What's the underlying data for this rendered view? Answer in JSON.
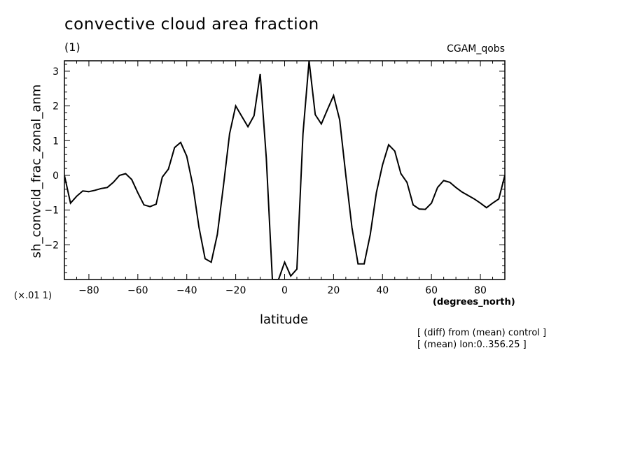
{
  "header": {
    "title": "convective cloud area fraction",
    "subtitle": "(1)",
    "run_label": "CGAM_qobs"
  },
  "axes": {
    "ylabel": "sh_convcld_frac_zonal_anm",
    "xlabel": "latitude",
    "x_units": "(degrees_north)",
    "y_scale_note": "(×.01 1)"
  },
  "notes": [
    "[ (diff) from (mean) control ]",
    "[ (mean) lon:0..356.25 ]"
  ],
  "chart_data": {
    "type": "line",
    "title": "convective cloud area fraction",
    "xlabel": "latitude",
    "ylabel": "sh_convcld_frac_zonal_anm",
    "xlim": [
      -90,
      90
    ],
    "ylim": [
      -3,
      3.3
    ],
    "xticks": [
      -80,
      -60,
      -40,
      -20,
      0,
      20,
      40,
      60,
      80
    ],
    "xtick_labels": [
      "−80",
      "−60",
      "−40",
      "−20",
      "0",
      "20",
      "40",
      "60",
      "80"
    ],
    "yticks": [
      -2,
      -1,
      0,
      1,
      2,
      3
    ],
    "ytick_labels": [
      "−2",
      "−1",
      "0",
      "1",
      "2",
      "3"
    ],
    "grid": false,
    "series": [
      {
        "x": [
          -90,
          -87.5,
          -85,
          -82.5,
          -80,
          -77.5,
          -75,
          -72.5,
          -70,
          -67.5,
          -65,
          -62.5,
          -60,
          -57.5,
          -55,
          -52.5,
          -50,
          -47.5,
          -45,
          -42.5,
          -40,
          -37.5,
          -35,
          -32.5,
          -30,
          -27.5,
          -25,
          -22.5,
          -20,
          -17.5,
          -15,
          -12.5,
          -10,
          -7.5,
          -5,
          -2.5,
          0,
          2.5,
          5,
          7.5,
          10,
          12.5,
          15,
          17.5,
          20,
          22.5,
          25,
          27.5,
          30,
          32.5,
          35,
          37.5,
          40,
          42.5,
          45,
          47.5,
          50,
          52.5,
          55,
          57.5,
          60,
          62.5,
          65,
          67.5,
          70,
          72.5,
          75,
          77.5,
          80,
          82.5,
          85,
          87.5,
          90
        ],
        "values": [
          0.0,
          -0.8,
          -0.6,
          -0.45,
          -0.47,
          -0.43,
          -0.38,
          -0.35,
          -0.2,
          0.0,
          0.05,
          -0.12,
          -0.5,
          -0.85,
          -0.9,
          -0.83,
          -0.05,
          0.18,
          0.8,
          0.95,
          0.55,
          -0.3,
          -1.5,
          -2.4,
          -2.5,
          -1.7,
          -0.3,
          1.2,
          2.0,
          1.7,
          1.4,
          1.72,
          2.92,
          0.5,
          -3.0,
          -3.0,
          -2.5,
          -2.9,
          -2.7,
          1.2,
          3.3,
          1.75,
          1.48,
          1.9,
          2.3,
          1.6,
          0.0,
          -1.5,
          -2.55,
          -2.55,
          -1.7,
          -0.5,
          0.3,
          0.88,
          0.7,
          0.05,
          -0.2,
          -0.85,
          -0.97,
          -0.98,
          -0.8,
          -0.35,
          -0.15,
          -0.2,
          -0.35,
          -0.48,
          -0.58,
          -0.68,
          -0.8,
          -0.93,
          -0.8,
          -0.68,
          0.0
        ]
      }
    ]
  }
}
